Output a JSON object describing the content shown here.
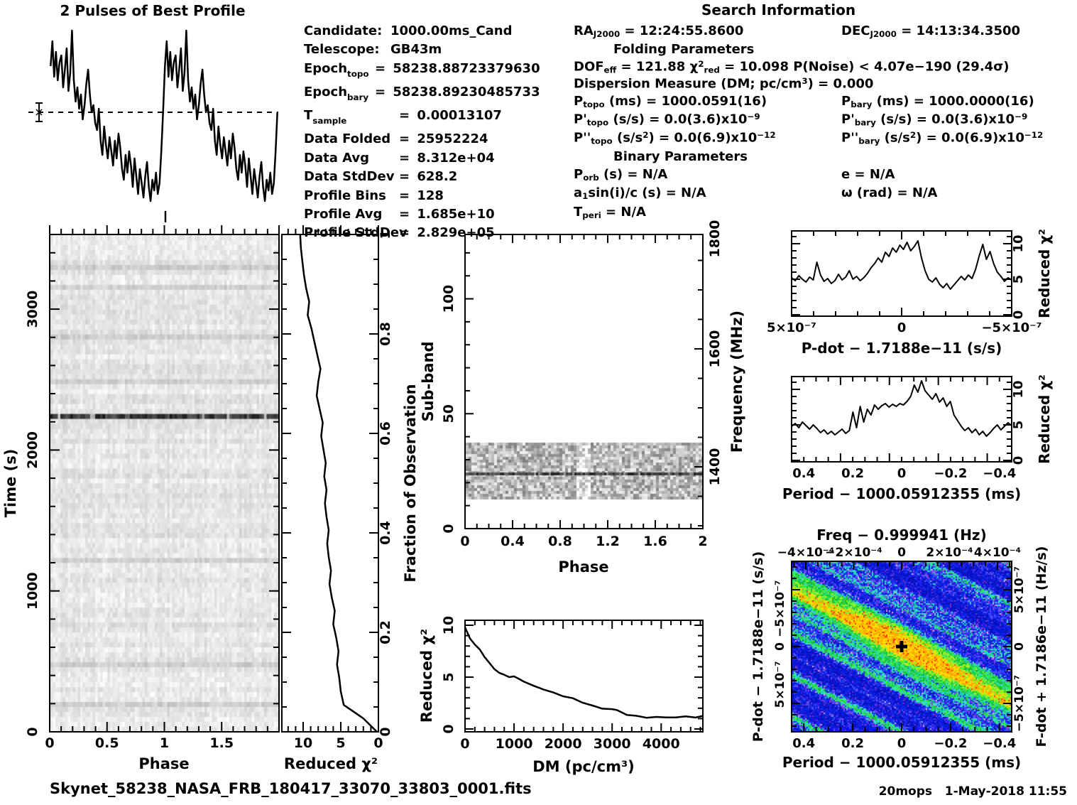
{
  "header": {
    "profile_title": "2 Pulses of Best Profile",
    "search_title": "Search Information",
    "folding_title": "Folding Parameters",
    "binary_title": "Binary Parameters"
  },
  "candidate_info": {
    "rows": [
      {
        "n": [
          {
            "t": "Candidate:"
          }
        ],
        "eq": false,
        "v": "1000.00ms_Cand"
      },
      {
        "n": [
          {
            "t": "Telescope:"
          }
        ],
        "eq": false,
        "v": "GB43m"
      },
      {
        "n": [
          {
            "t": "Epoch"
          },
          {
            "t": "topo",
            "sub": true
          }
        ],
        "eq": true,
        "narrow": true,
        "v": "58238.88723379630"
      },
      {
        "n": [
          {
            "t": "Epoch"
          },
          {
            "t": "bary",
            "sub": true
          }
        ],
        "eq": true,
        "narrow": true,
        "v": "58238.89230485733"
      },
      {
        "n": [
          {
            "t": "T"
          },
          {
            "t": "sample",
            "sub": true
          }
        ],
        "eq": true,
        "v": "0.00013107"
      },
      {
        "n": [
          {
            "t": "Data Folded"
          }
        ],
        "eq": true,
        "v": "25952224"
      },
      {
        "n": [
          {
            "t": "Data Avg"
          }
        ],
        "eq": true,
        "v": "8.312e+04"
      },
      {
        "n": [
          {
            "t": "Data StdDev"
          }
        ],
        "eq": true,
        "v": "628.2"
      },
      {
        "n": [
          {
            "t": "Profile Bins"
          }
        ],
        "eq": true,
        "v": "128"
      },
      {
        "n": [
          {
            "t": "Profile Avg"
          }
        ],
        "eq": true,
        "v": "1.685e+10"
      },
      {
        "n": [
          {
            "t": "Profile StdDev"
          }
        ],
        "eq": true,
        "v": "2.829e+05"
      }
    ]
  },
  "search": {
    "title": "Search Information",
    "folding_title": "Folding Parameters",
    "binary_title": "Binary Parameters",
    "ra": [
      {
        "t": "RA"
      },
      {
        "t": "J2000",
        "sub": true
      },
      {
        "t": " = 12:24:55.8600"
      }
    ],
    "dec": [
      {
        "t": "DEC"
      },
      {
        "t": "J2000",
        "sub": true
      },
      {
        "t": " = 14:13:34.3500"
      }
    ],
    "dof_line": [
      {
        "t": "DOF"
      },
      {
        "t": "eff",
        "sub": true
      },
      {
        "t": " = 121.88   "
      },
      {
        "t": "χ"
      },
      {
        "t": "2",
        "sup": true
      },
      {
        "t": "red",
        "sub": true
      },
      {
        "t": " = 10.098   P(Noise) < 4.07e−190   (29.4σ)"
      }
    ],
    "dm_line": [
      {
        "t": "Dispersion Measure (DM; pc/cm"
      },
      {
        "t": "3",
        "sup": true
      },
      {
        "t": ") = 0.000"
      }
    ],
    "p_topo": [
      {
        "t": "P"
      },
      {
        "t": "topo",
        "sub": true
      },
      {
        "t": " (ms) =  1000.0591(16)"
      }
    ],
    "p_bary": [
      {
        "t": "P"
      },
      {
        "t": "bary",
        "sub": true
      },
      {
        "t": " (ms) =  1000.0000(16)"
      }
    ],
    "pd_topo": [
      {
        "t": "P'"
      },
      {
        "t": "topo",
        "sub": true
      },
      {
        "t": " (s/s) = 0.0(3.6)x10"
      },
      {
        "t": "−9",
        "sup": true
      }
    ],
    "pd_bary": [
      {
        "t": "P'"
      },
      {
        "t": "bary",
        "sub": true
      },
      {
        "t": " (s/s) = 0.0(3.6)x10"
      },
      {
        "t": "−9",
        "sup": true
      }
    ],
    "pdd_topo": [
      {
        "t": "P''"
      },
      {
        "t": "topo",
        "sub": true
      },
      {
        "t": " (s/s"
      },
      {
        "t": "2",
        "sup": true
      },
      {
        "t": ") = 0.0(6.9)x10"
      },
      {
        "t": "−12",
        "sup": true
      }
    ],
    "pdd_bary": [
      {
        "t": "P''"
      },
      {
        "t": "bary",
        "sub": true
      },
      {
        "t": " (s/s"
      },
      {
        "t": "2",
        "sup": true
      },
      {
        "t": ") = 0.0(6.9)x10"
      },
      {
        "t": "−12",
        "sup": true
      }
    ],
    "porb": [
      {
        "t": "P"
      },
      {
        "t": "orb",
        "sub": true
      },
      {
        "t": " (s) = N/A"
      }
    ],
    "ecc": [
      {
        "t": "e = N/A"
      }
    ],
    "a1": [
      {
        "t": "a"
      },
      {
        "t": "1",
        "sub": true
      },
      {
        "t": "sin(i)/c (s) = N/A"
      }
    ],
    "omega": [
      {
        "t": "ω (rad) = N/A"
      }
    ],
    "tperi": [
      {
        "t": "T"
      },
      {
        "t": "peri",
        "sub": true
      },
      {
        "t": " = N/A"
      }
    ]
  },
  "footer": {
    "filename": "Skynet_58238_NASA_FRB_180417_33070_33803_0001.fits",
    "credit": "20mops   1-May-2018 11:55"
  },
  "chart_data": {
    "profile": {
      "type": "line",
      "title": "2 Pulses of Best Profile",
      "x_range": [
        0,
        2
      ],
      "pulses": 2,
      "bins_per_pulse": 64,
      "values_one_pulse": [
        0.78,
        0.92,
        0.72,
        0.86,
        0.7,
        0.8,
        0.84,
        0.66,
        0.76,
        0.88,
        0.64,
        0.74,
        0.98,
        0.7,
        0.58,
        0.66,
        0.54,
        0.62,
        0.48,
        0.56,
        0.68,
        0.76,
        0.62,
        0.52,
        0.56,
        0.46,
        0.42,
        0.54,
        0.36,
        0.28,
        0.44,
        0.34,
        0.26,
        0.38,
        0.3,
        0.22,
        0.36,
        0.26,
        0.4,
        0.32,
        0.2,
        0.14,
        0.28,
        0.18,
        0.3,
        0.22,
        0.1,
        0.26,
        0.16,
        0.06,
        0.2,
        0.12,
        0.04,
        0.16,
        0.24,
        0.1,
        0.02,
        0.14,
        0.08,
        0.18,
        0.06,
        0.12,
        0.3,
        0.52
      ],
      "mean_level": 0.52,
      "annotations": [
        "dashed horizontal mean line",
        "error bar with asterisk at left",
        "tick marker below profile at phase 1"
      ]
    },
    "chi2_vs_time": {
      "type": "line",
      "xlabel": "Reduced χ²",
      "x_ticks": [
        "10",
        "5",
        "0"
      ],
      "x_tick_values": [
        10,
        5,
        0
      ],
      "x_range": [
        12.8,
        0
      ],
      "right_ylabel": "Fraction of Observation",
      "right_ticks": [
        "0",
        "0.2",
        "0.4",
        "0.6",
        "0.8",
        "1"
      ],
      "right_tick_values": [
        0,
        0.2,
        0.4,
        0.6,
        0.8,
        1
      ],
      "fraction_range": [
        0,
        1
      ],
      "values": [
        0.2,
        2.0,
        4.6,
        5.0,
        5.2,
        5.5,
        5.3,
        5.6,
        6.0,
        5.8,
        6.2,
        6.5,
        6.3,
        6.6,
        6.8,
        6.6,
        6.9,
        7.1,
        6.9,
        7.2,
        7.0,
        7.3,
        7.6,
        7.4,
        7.8,
        8.2,
        8.0,
        7.7,
        8.1,
        8.5,
        8.9,
        9.4,
        9.2,
        9.6,
        9.9,
        10.1,
        10.3,
        10.4
      ]
    },
    "time_vs_phase": {
      "type": "heatmap",
      "xlabel": "Phase",
      "ylabel": "Time (s)",
      "x_ticks": [
        "0",
        "0.5",
        "1",
        "1.5"
      ],
      "x_tick_values": [
        0,
        0.5,
        1,
        1.5
      ],
      "x_range": [
        0,
        2
      ],
      "y_ticks": [
        "0",
        "1000",
        "2000",
        "3000"
      ],
      "y_tick_values": [
        0,
        1000,
        2000,
        3000
      ],
      "y_range": [
        0,
        3530
      ],
      "dark_band_time_s": 2250,
      "description": "light grey random noise vs phase and time; one nearly black horizontal band at ~2250 s spanning all phases"
    },
    "subband_vs_phase": {
      "type": "heatmap",
      "xlabel": "Phase",
      "ylabel": "Sub-band",
      "right_ylabel": "Frequency (MHz)",
      "x_ticks": [
        "0",
        "0.4",
        "0.8",
        "1.2",
        "1.6",
        "2"
      ],
      "x_tick_values": [
        0,
        0.4,
        0.8,
        1.2,
        1.6,
        2
      ],
      "x_range": [
        0,
        2
      ],
      "y_ticks": [
        "0",
        "50",
        "100"
      ],
      "y_tick_values": [
        0,
        50,
        100
      ],
      "y_range": [
        0,
        128
      ],
      "right_ticks": [
        "1400",
        "1600",
        "1800"
      ],
      "right_tick_values": [
        1400,
        1600,
        1800
      ],
      "band_subband_range": [
        13,
        37
      ],
      "dark_line_freq_mhz": 1400,
      "description": "white panel with grey noise band between sub-bands ~13-37 and a dark horizontal line near 1400 MHz"
    },
    "chi2_vs_dm": {
      "type": "line",
      "xlabel": "DM (pc/cm³)",
      "ylabel": "Reduced χ²",
      "x_ticks": [
        "0",
        "1000",
        "2000",
        "3000",
        "4000"
      ],
      "x_tick_values": [
        0,
        1000,
        2000,
        3000,
        4000
      ],
      "x_range": [
        0,
        4850
      ],
      "y_ticks": [
        "0",
        "5",
        "10"
      ],
      "y_tick_values": [
        0,
        5,
        10
      ],
      "y_range": [
        0,
        10.8
      ],
      "x": [
        0,
        100,
        200,
        300,
        400,
        500,
        600,
        700,
        800,
        900,
        1000,
        1100,
        1200,
        1400,
        1600,
        1800,
        2000,
        2200,
        2400,
        2600,
        2800,
        3000,
        3100,
        3300,
        3500,
        3700,
        3900,
        4100,
        4300,
        4500,
        4700,
        4850
      ],
      "y": [
        9.8,
        8.7,
        8.2,
        7.6,
        7.0,
        6.3,
        5.8,
        5.4,
        5.2,
        5.05,
        5.0,
        4.9,
        4.5,
        4.2,
        3.8,
        3.5,
        3.2,
        2.9,
        2.6,
        2.2,
        2.0,
        1.9,
        1.8,
        1.4,
        1.2,
        1.15,
        1.1,
        1.15,
        1.1,
        1.2,
        1.15,
        1.2
      ]
    },
    "chi2_vs_pdot": {
      "type": "line",
      "xlabel": "P-dot − 1.7188e−11 (s/s)",
      "right_ylabel": "Reduced χ²",
      "x_ticks": [
        "5×10⁻⁷",
        "0",
        "−5×10⁻⁷"
      ],
      "x_tick_values": [
        5e-07,
        0,
        -5e-07
      ],
      "x_range": [
        5e-07,
        -5e-07
      ],
      "right_ticks": [
        "0",
        "5",
        "10"
      ],
      "right_tick_values": [
        0,
        5,
        10
      ],
      "y_range": [
        0,
        11.8
      ],
      "values": [
        5.2,
        4.8,
        5.5,
        5.0,
        4.6,
        5.3,
        4.9,
        7.4,
        5.6,
        4.7,
        5.1,
        4.4,
        4.8,
        5.7,
        4.9,
        5.3,
        6.2,
        5.0,
        5.4,
        4.8,
        5.2,
        5.8,
        6.6,
        7.2,
        8.0,
        7.4,
        8.8,
        8.2,
        9.4,
        8.8,
        9.8,
        9.2,
        10.2,
        9.0,
        9.6,
        10.4,
        8.0,
        6.2,
        5.0,
        4.6,
        5.2,
        4.3,
        3.8,
        4.4,
        3.6,
        4.2,
        4.8,
        5.4,
        4.9,
        5.6,
        5.1,
        6.4,
        8.3,
        9.9,
        7.8,
        8.9,
        7.2,
        6.0,
        5.4,
        4.7,
        5.2,
        4.9
      ]
    },
    "chi2_vs_period": {
      "type": "line",
      "xlabel": "Period − 1000.05912355 (ms)",
      "right_ylabel": "Reduced χ²",
      "x_ticks": [
        "0.4",
        "0.2",
        "0",
        "−0.2",
        "−0.4"
      ],
      "x_tick_values": [
        0.4,
        0.2,
        0,
        -0.2,
        -0.4
      ],
      "x_range": [
        0.45,
        -0.45
      ],
      "right_ticks": [
        "0",
        "5",
        "10"
      ],
      "right_tick_values": [
        0,
        5,
        10
      ],
      "y_range": [
        0,
        11.8
      ],
      "values": [
        4.8,
        5.2,
        4.6,
        5.4,
        4.9,
        4.4,
        5.0,
        4.5,
        3.9,
        4.3,
        3.7,
        4.1,
        3.6,
        4.0,
        4.4,
        3.8,
        4.2,
        6.8,
        4.6,
        7.6,
        5.4,
        7.2,
        6.4,
        7.8,
        7.2,
        7.7,
        8.0,
        7.5,
        7.9,
        7.6,
        8.0,
        7.8,
        8.3,
        9.0,
        10.6,
        9.6,
        11.2,
        9.8,
        9.2,
        8.6,
        9.4,
        8.2,
        8.8,
        7.6,
        8.3,
        6.4,
        5.6,
        4.8,
        4.2,
        4.6,
        3.9,
        4.4,
        3.6,
        4.1,
        3.4,
        3.9,
        4.5,
        5.0,
        4.3,
        4.8,
        5.3,
        4.9
      ]
    },
    "pdot_freq_map": {
      "type": "heatmap",
      "title": "Freq − 0.999941 (Hz)",
      "top_ticks": [
        "−4×10⁻⁴",
        "−2×10⁻⁴",
        "0",
        "2×10⁻⁴",
        "4×10⁻⁴"
      ],
      "top_tick_values": [
        -0.0004,
        -0.0002,
        0,
        0.0002,
        0.0004
      ],
      "top_range": [
        -0.0004593,
        0.0004593
      ],
      "bottom_xlabel": "Period − 1000.05912355 (ms)",
      "bottom_ticks": [
        "0.4",
        "0.2",
        "0",
        "−0.2",
        "−0.4"
      ],
      "bottom_tick_values": [
        0.4,
        0.2,
        0,
        -0.2,
        -0.4
      ],
      "bottom_range": [
        0.45,
        -0.45
      ],
      "left_ylabel": "P-dot − 1.7188e−11 (s/s)",
      "left_ticks": [
        "−5×10⁻⁷",
        "0",
        "5×10⁻⁷"
      ],
      "left_tick_values": [
        -5e-07,
        0,
        5e-07
      ],
      "left_range": [
        -7.5e-07,
        7.5e-07
      ],
      "right_ylabel": "F-dot + 1.7186e−11 (Hz/s)",
      "right_ticks": [
        "5×10⁻⁷",
        "0",
        "−5×10⁻⁷"
      ],
      "marker": "black cross at (0,0)",
      "palette": [
        "#0011bb",
        "#2233ee",
        "#8844dd",
        "#22ccaa",
        "#22cc44",
        "#99ee22",
        "#ffee00",
        "#ff8800",
        "#ff2200"
      ],
      "description": "blue speckle noise with diagonal green ridges running upper-left to lower-right; bright yellow-green ridge through centre with a yellow/orange hotspot at the marked cross"
    }
  }
}
